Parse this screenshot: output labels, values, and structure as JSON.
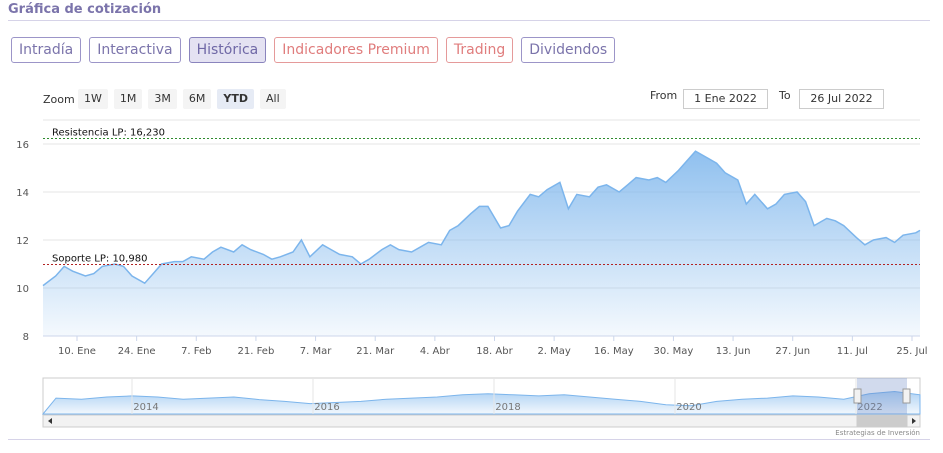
{
  "header": {
    "title": "Gráfica de cotización"
  },
  "tabs": [
    {
      "label": "Intradía",
      "active": false,
      "red": false
    },
    {
      "label": "Interactiva",
      "active": false,
      "red": false
    },
    {
      "label": "Histórica",
      "active": true,
      "red": false
    },
    {
      "label": "Indicadores Premium",
      "active": false,
      "red": true
    },
    {
      "label": "Trading",
      "active": false,
      "red": true
    },
    {
      "label": "Dividendos",
      "active": false,
      "red": false
    }
  ],
  "zoom": {
    "label": "Zoom",
    "buttons": [
      "1W",
      "1M",
      "3M",
      "6M",
      "YTD",
      "All"
    ],
    "selected": "YTD"
  },
  "range": {
    "from_label": "From",
    "from_value": "1 Ene 2022",
    "to_label": "To",
    "to_value": "26 Jul 2022"
  },
  "colors": {
    "accent": "#7b74ab",
    "series": "#7cb5ec",
    "resistance": "#2e8b2e",
    "support": "#b22222"
  },
  "credits": "Estrategias de Inversión",
  "chart_data": {
    "type": "area",
    "ylim": [
      8,
      17
    ],
    "yticks": [
      "8",
      "10",
      "12",
      "14",
      "16"
    ],
    "xtick_labels": [
      "10. Ene",
      "24. Ene",
      "7. Feb",
      "21. Feb",
      "7. Mar",
      "21. Mar",
      "4. Abr",
      "18. Abr",
      "2. May",
      "16. May",
      "30. May",
      "13. Jun",
      "27. Jun",
      "11. Jul",
      "25. Jul"
    ],
    "x": [
      0,
      3,
      5,
      7,
      10,
      12,
      14,
      17,
      19,
      21,
      24,
      26,
      28,
      31,
      33,
      35,
      38,
      40,
      42,
      45,
      47,
      49,
      52,
      54,
      56,
      59,
      61,
      63,
      66,
      68,
      70,
      73,
      75,
      77,
      80,
      82,
      84,
      87,
      89,
      91,
      94,
      96,
      98,
      101,
      103,
      105,
      108,
      110,
      112,
      115,
      117,
      119,
      122,
      124,
      126,
      129,
      131,
      133,
      136,
      138,
      140,
      143,
      145,
      147,
      150,
      152,
      154,
      157,
      159,
      161,
      164,
      166,
      168,
      171,
      173,
      175,
      178,
      180,
      182,
      185,
      187,
      189,
      192,
      194,
      196,
      199,
      201,
      203,
      206,
      207
    ],
    "values": [
      10.1,
      10.5,
      10.9,
      10.7,
      10.5,
      10.6,
      10.9,
      11.0,
      10.9,
      10.5,
      10.2,
      10.6,
      11.0,
      11.1,
      11.1,
      11.3,
      11.2,
      11.5,
      11.7,
      11.5,
      11.8,
      11.6,
      11.4,
      11.2,
      11.3,
      11.5,
      12.0,
      11.3,
      11.8,
      11.6,
      11.4,
      11.3,
      11.0,
      11.2,
      11.6,
      11.8,
      11.6,
      11.5,
      11.7,
      11.9,
      11.8,
      12.4,
      12.6,
      13.1,
      13.4,
      13.4,
      12.5,
      12.6,
      13.2,
      13.9,
      13.8,
      14.1,
      14.4,
      13.3,
      13.9,
      13.8,
      14.2,
      14.3,
      14.0,
      14.3,
      14.6,
      14.5,
      14.6,
      14.4,
      14.9,
      15.3,
      15.7,
      15.4,
      15.2,
      14.8,
      14.5,
      13.5,
      13.9,
      13.3,
      13.5,
      13.9,
      14.0,
      13.6,
      12.6,
      12.9,
      12.8,
      12.6,
      12.1,
      11.8,
      12.0,
      12.1,
      11.9,
      12.2,
      12.3,
      12.4
    ],
    "resistance": {
      "label": "Resistencia LP: 16,230",
      "value": 16.23
    },
    "support": {
      "label": "Soporte LP: 10,980",
      "value": 10.98
    },
    "navigator": {
      "labels": [
        "2014",
        "2016",
        "2018",
        "2020",
        "2022"
      ]
    }
  }
}
